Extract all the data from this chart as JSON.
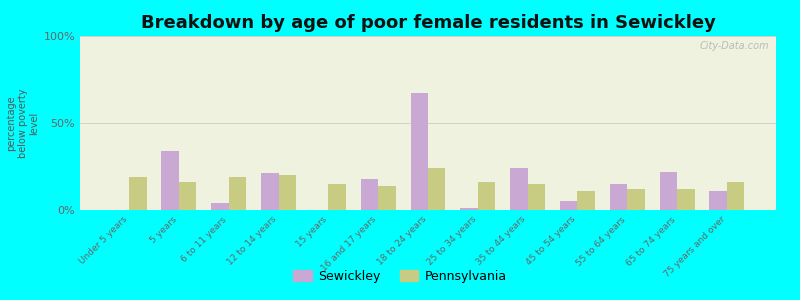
{
  "title": "Breakdown by age of poor female residents in Sewickley",
  "ylabel": "percentage\nbelow poverty\nlevel",
  "categories": [
    "Under 5 years",
    "5 years",
    "6 to 11 years",
    "12 to 14 years",
    "15 years",
    "16 and 17 years",
    "18 to 24 years",
    "25 to 34 years",
    "35 to 44 years",
    "45 to 54 years",
    "55 to 64 years",
    "65 to 74 years",
    "75 years and over"
  ],
  "sewickley": [
    0,
    34,
    4,
    21,
    0,
    18,
    67,
    1,
    24,
    5,
    15,
    22,
    11
  ],
  "pennsylvania": [
    19,
    16,
    19,
    20,
    15,
    14,
    24,
    16,
    15,
    11,
    12,
    12,
    16
  ],
  "sewickley_color": "#c9a8d4",
  "pennsylvania_color": "#c8cc82",
  "background_color": "#00ffff",
  "plot_bg_color": "#eef2df",
  "ylim": [
    0,
    100
  ],
  "yticks": [
    0,
    50,
    100
  ],
  "ytick_labels": [
    "0%",
    "50%",
    "100%"
  ],
  "title_fontsize": 13,
  "legend_labels": [
    "Sewickley",
    "Pennsylvania"
  ],
  "bar_width": 0.35
}
